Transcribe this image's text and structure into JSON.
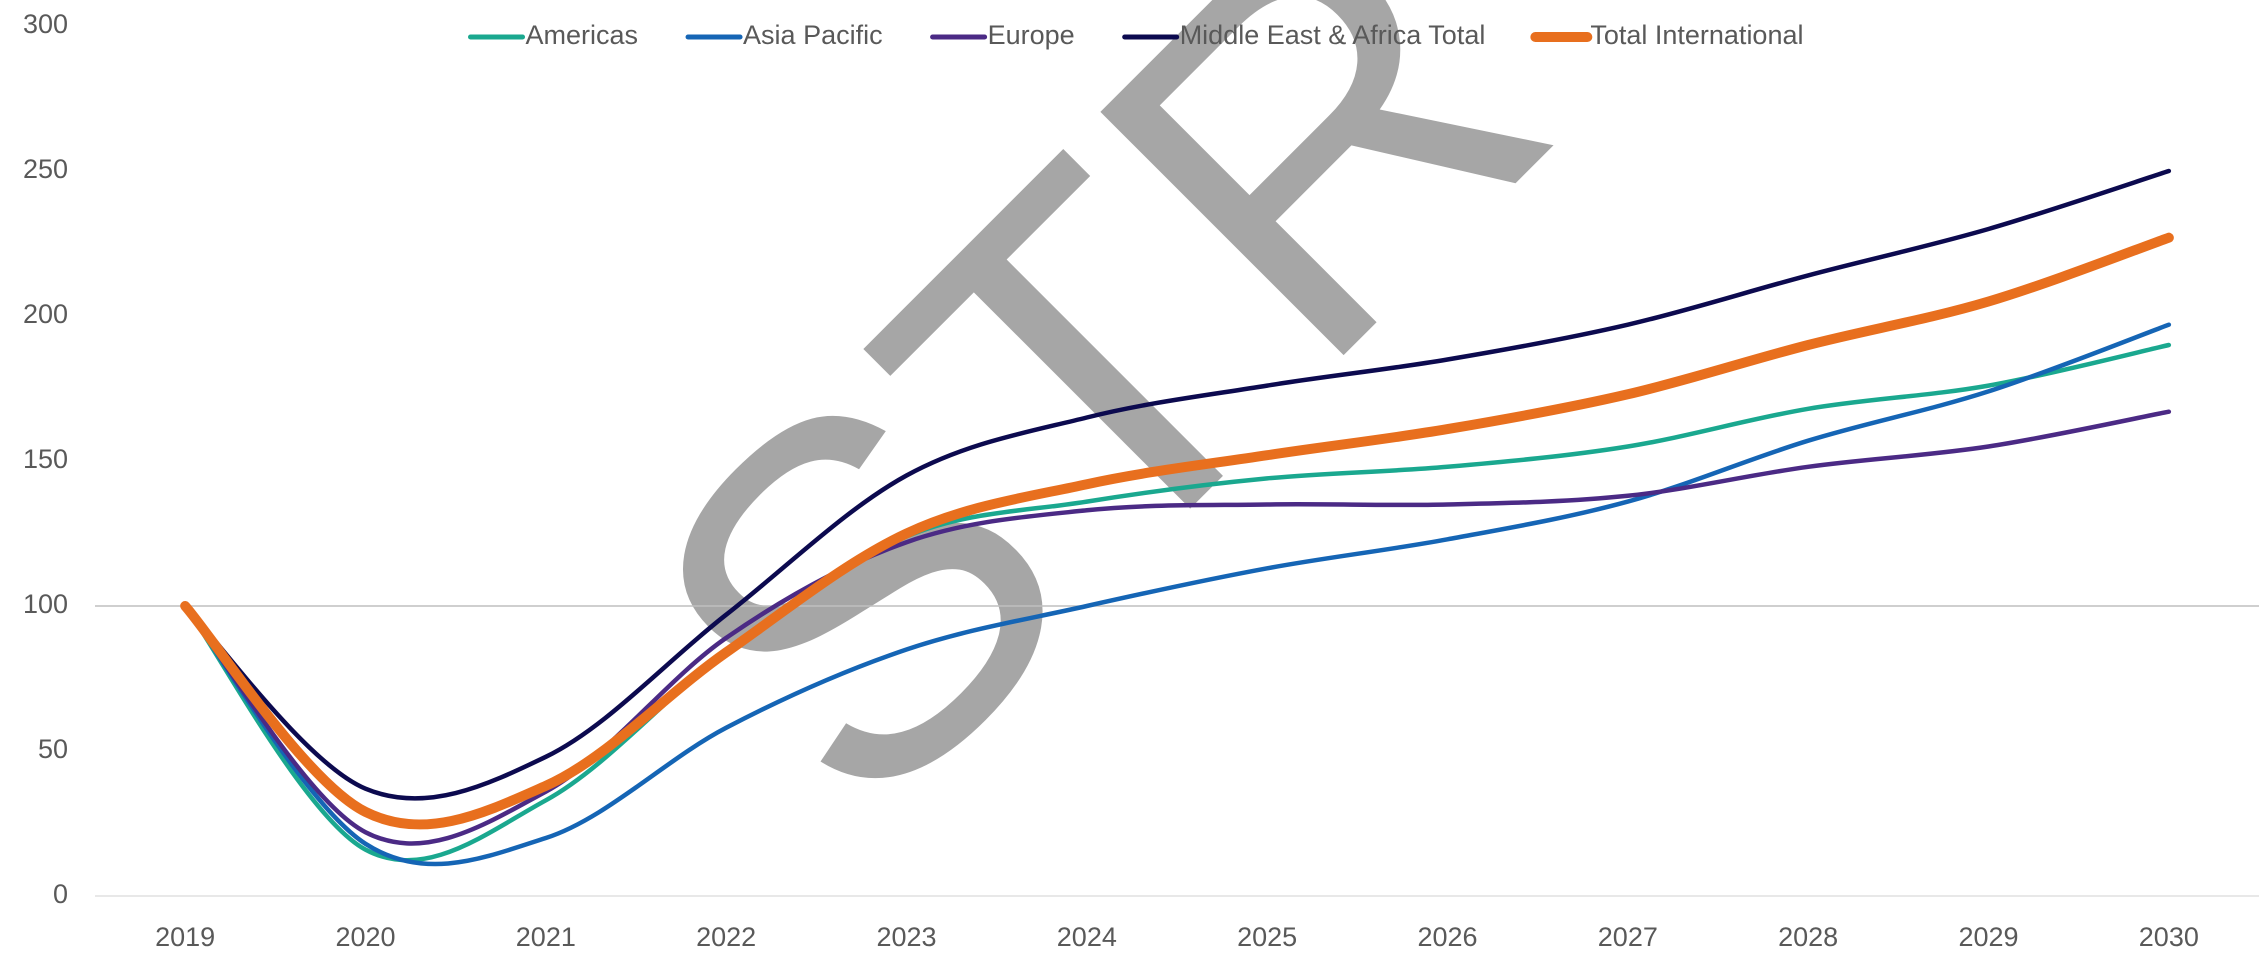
{
  "chart_data": {
    "type": "line",
    "watermark": "STR",
    "categories": [
      "2019",
      "2020",
      "2021",
      "2022",
      "2023",
      "2024",
      "2025",
      "2026",
      "2027",
      "2028",
      "2029",
      "2030"
    ],
    "series": [
      {
        "name": "Americas",
        "color": "#1aa88f",
        "values": [
          100,
          16,
          33,
          84,
          124,
          136,
          144,
          148,
          155,
          168,
          176,
          190
        ]
      },
      {
        "name": "Asia Pacific",
        "color": "#1565b5",
        "values": [
          100,
          18,
          20,
          58,
          85,
          100,
          113,
          123,
          136,
          157,
          174,
          197
        ]
      },
      {
        "name": "Europe",
        "color": "#4b2a85",
        "values": [
          100,
          22,
          36,
          89,
          122,
          133,
          135,
          135,
          138,
          148,
          155,
          167
        ]
      },
      {
        "name": "Middle East & Africa Total",
        "color": "#0c0a4f",
        "values": [
          100,
          37,
          48,
          97,
          145,
          165,
          176,
          185,
          197,
          214,
          230,
          250
        ]
      },
      {
        "name": "Total International",
        "color": "#e86f1e",
        "values": [
          100,
          29,
          38,
          84,
          125,
          142,
          152,
          161,
          173,
          190,
          205,
          227
        ]
      }
    ],
    "ylim": [
      0,
      300
    ],
    "yticks": [
      0,
      50,
      100,
      150,
      200,
      250,
      300
    ],
    "horizontal_axis_crosses_at": 100,
    "legend": "top"
  }
}
